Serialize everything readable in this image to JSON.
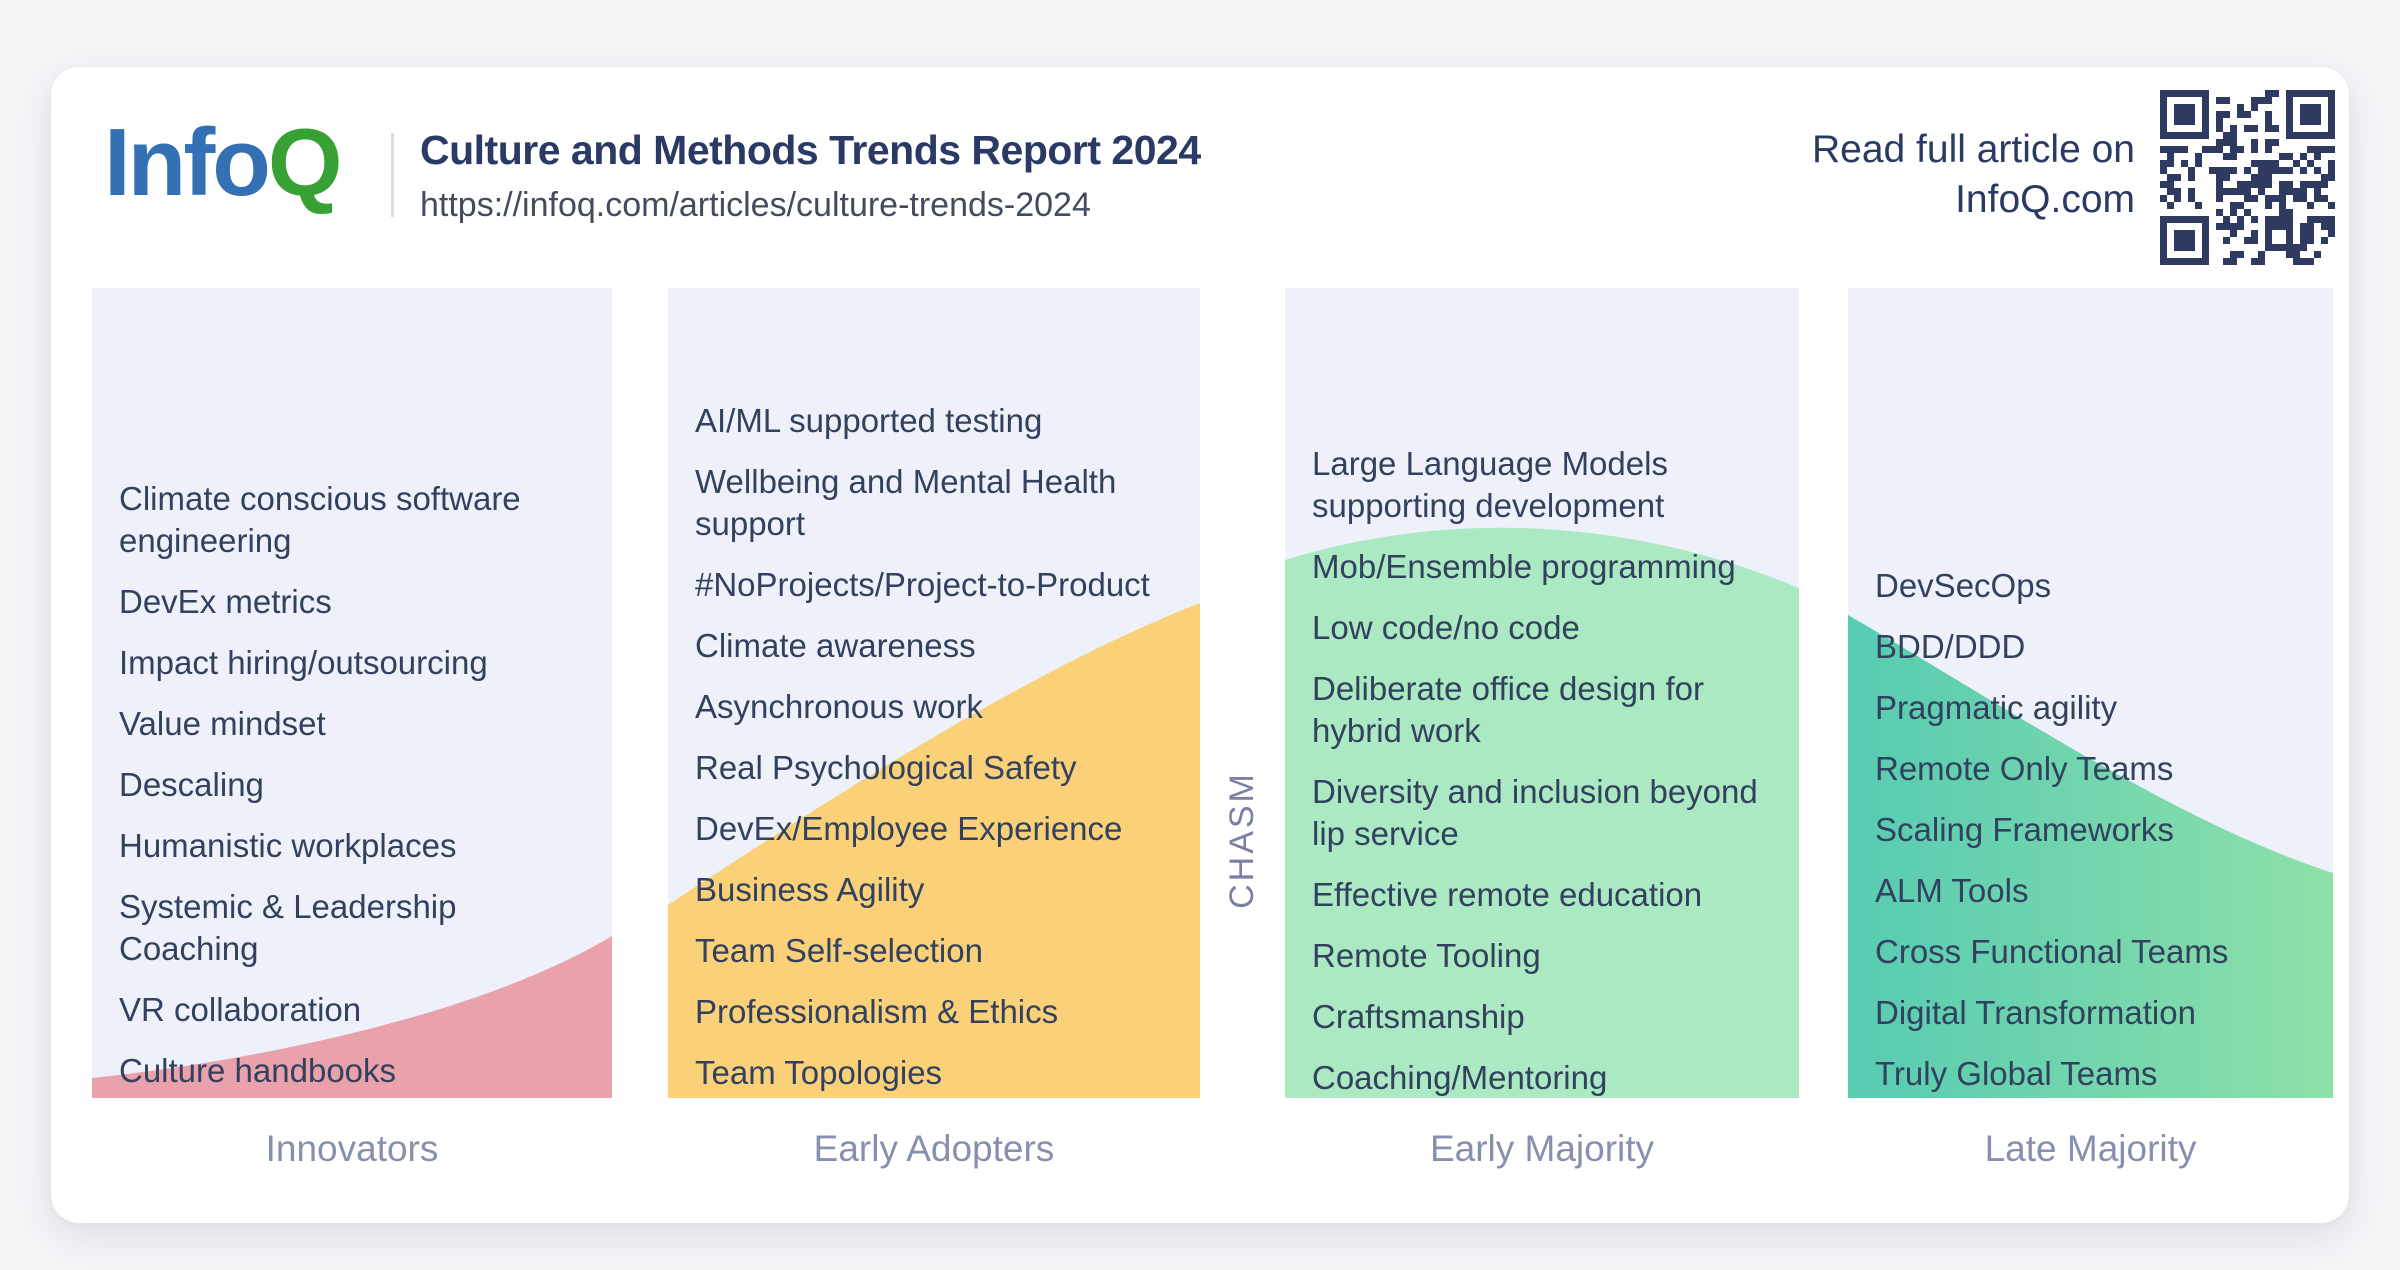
{
  "colors": {
    "page_bg": "#f4f5f7",
    "card": "#ffffff",
    "column_bg": "#eef1fa",
    "innovators": "#e9a1ab",
    "early_adopters": "#fad178",
    "early_majority": "#abe9c3",
    "late_majority_start": "#57cbb2",
    "late_majority_end": "#8ee0a8",
    "item_text": "#32415e",
    "title": "#2b3a64",
    "url": "#444b5d",
    "label": "#8690ae",
    "chasm": "#7a80a2",
    "logo_blue": "#3470b4",
    "logo_green": "#38a136",
    "divider": "#d9dce5",
    "qr": "#2e3a60"
  },
  "header": {
    "logo_info": "Info",
    "logo_q": "Q",
    "title": "Culture and Methods Trends Report 2024",
    "url": "https://infoq.com/articles/culture-trends-2024",
    "read_full_line1": "Read full article on",
    "read_full_line2": "InfoQ.com"
  },
  "chasm_label": "CHASM",
  "columns": [
    {
      "label": "Innovators",
      "items": [
        "Climate conscious software engineering",
        "DevEx metrics",
        "Impact hiring/outsourcing",
        "Value mindset",
        "Descaling",
        "Humanistic workplaces",
        "Systemic & Leadership Coaching",
        "VR collaboration",
        "Culture handbooks"
      ]
    },
    {
      "label": "Early Adopters",
      "items": [
        "AI/ML supported testing",
        "Wellbeing and Mental Health support",
        "#NoProjects/Project-to-Product",
        "Climate awareness",
        "Asynchronous work",
        "Real Psychological Safety",
        "DevEx/Employee Experience",
        "Business Agility",
        "Team Self-selection",
        "Professionalism & Ethics",
        "Team Topologies"
      ]
    },
    {
      "label": "Early Majority",
      "items": [
        "Large Language Models supporting development",
        "Mob/Ensemble programming",
        "Low code/no code",
        "Deliberate office design for hybrid work",
        "Diversity and inclusion beyond lip service",
        "Effective remote education",
        "Remote Tooling",
        "Craftsmanship",
        "Coaching/Mentoring"
      ]
    },
    {
      "label": "Late Majority",
      "items": [
        "DevSecOps",
        "BDD/DDD",
        "Pragmatic agility",
        "Remote Only Teams",
        "Scaling Frameworks",
        "ALM Tools",
        "Cross Functional Teams",
        "Digital Transformation",
        "Truly Global Teams"
      ]
    }
  ]
}
